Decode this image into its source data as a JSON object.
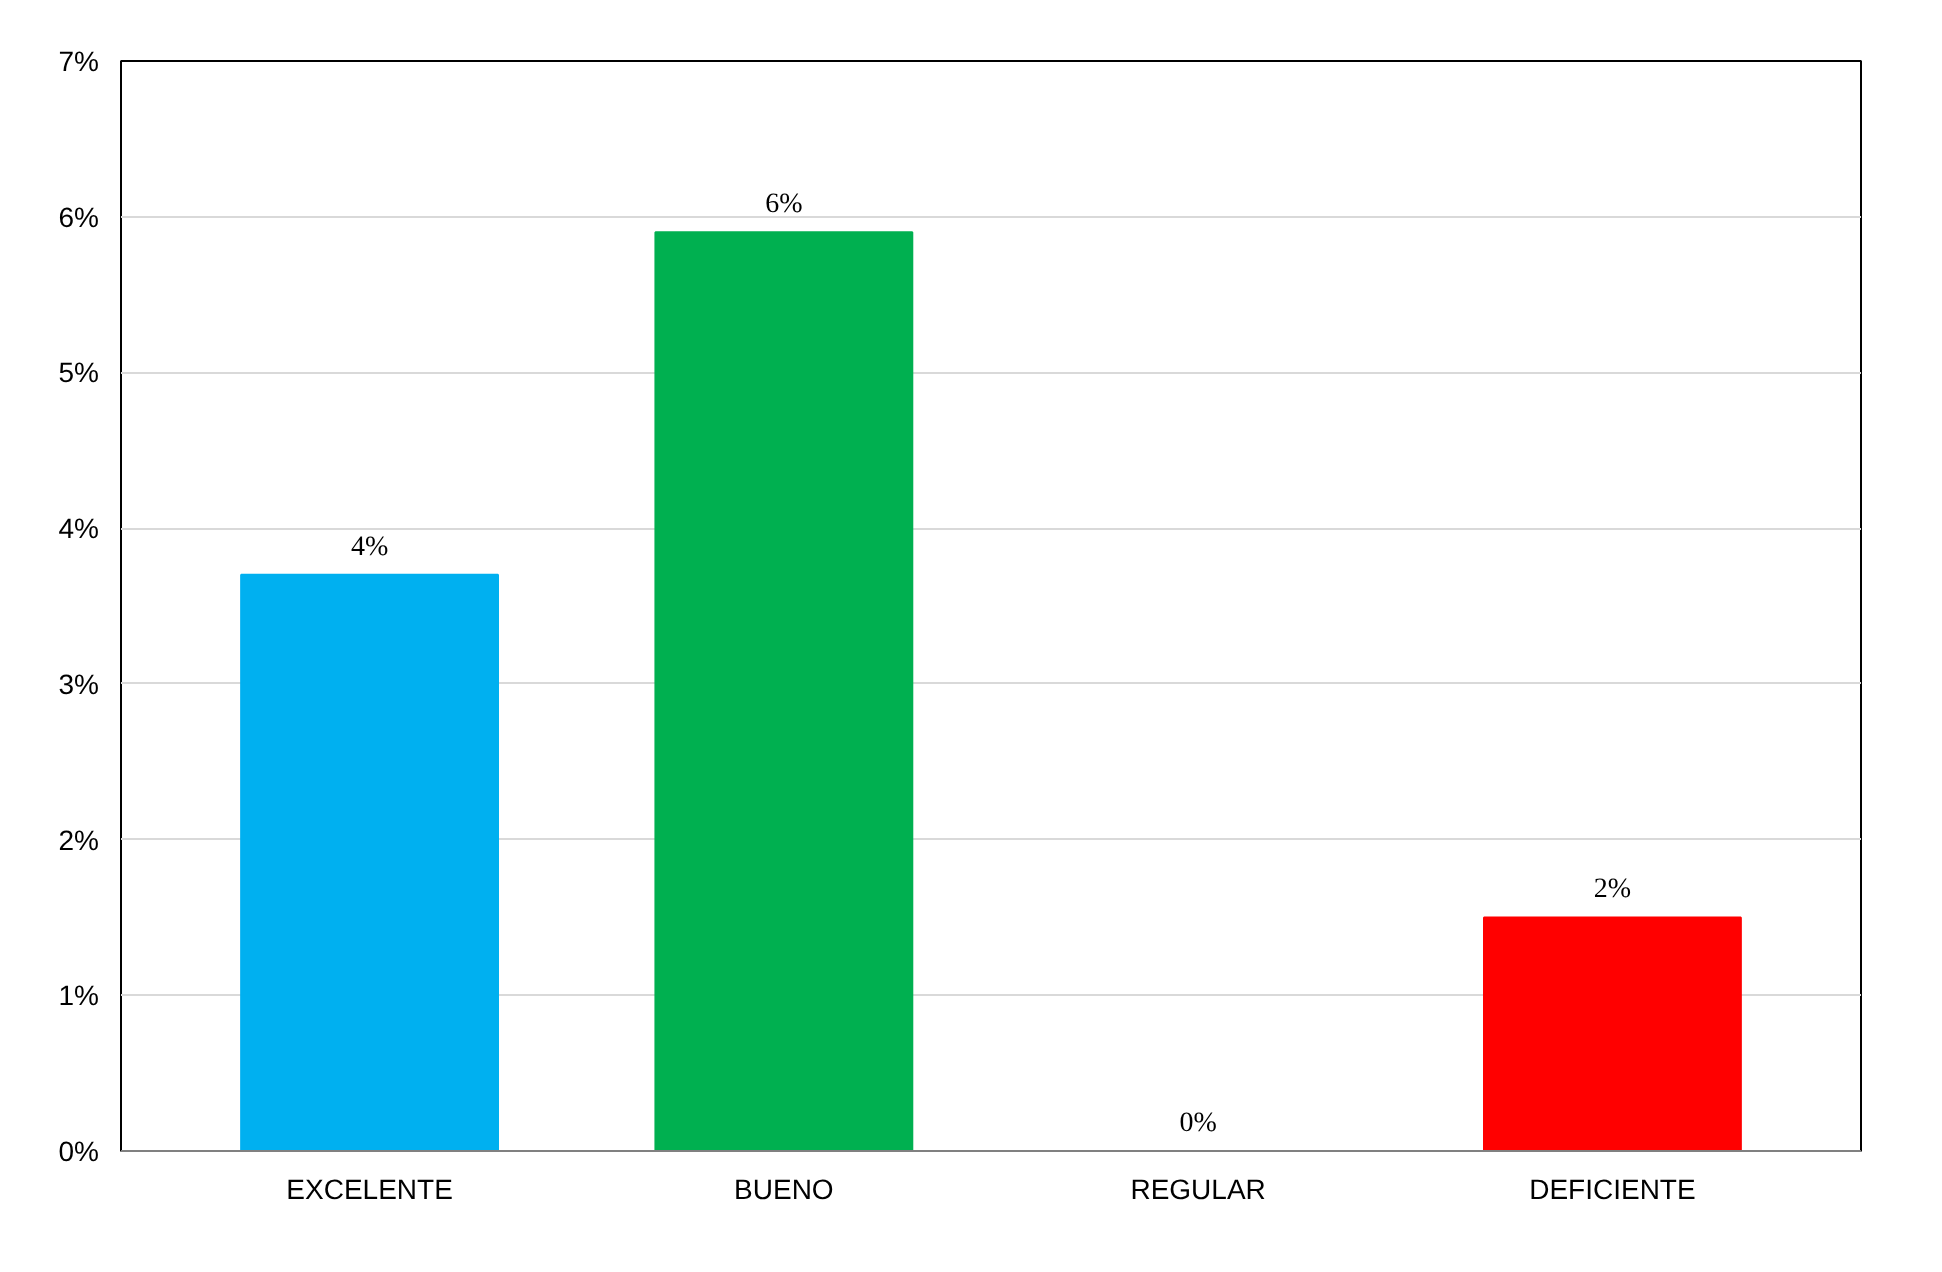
{
  "chart_data": {
    "type": "bar",
    "categories": [
      "EXCELENTE",
      "BUENO",
      "REGULAR",
      "DEFICIENTE"
    ],
    "values": [
      3.7,
      5.9,
      0,
      1.5
    ],
    "colors": [
      "#00b0f0",
      "#00b050",
      "#c8c400",
      "#ff0000"
    ],
    "value_labels": [
      "4%",
      "6%",
      "0%",
      "2%"
    ],
    "ylim": [
      0,
      7
    ],
    "yticks": [
      {
        "value": 0,
        "label": "0%"
      },
      {
        "value": 1,
        "label": "1%"
      },
      {
        "value": 2,
        "label": "2%"
      },
      {
        "value": 3,
        "label": "3%"
      },
      {
        "value": 4,
        "label": "4%"
      },
      {
        "value": 5,
        "label": "5%"
      },
      {
        "value": 6,
        "label": "6%"
      },
      {
        "value": 7,
        "label": "7%"
      }
    ],
    "grid": "y"
  }
}
